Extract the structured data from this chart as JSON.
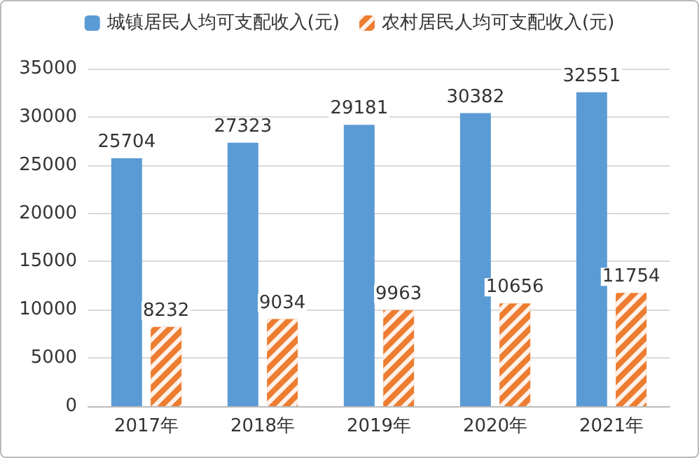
{
  "chart_data": {
    "type": "bar",
    "categories": [
      "2017年",
      "2018年",
      "2019年",
      "2020年",
      "2021年"
    ],
    "series": [
      {
        "name": "城镇居民人均可支配收入(元)",
        "color": "#5b9bd5",
        "values": [
          25704,
          27323,
          29181,
          30382,
          32551
        ]
      },
      {
        "name": "农村居民人均可支配收入(元)",
        "color": "#ed7d31",
        "values": [
          8232,
          9034,
          9963,
          10656,
          11754
        ]
      }
    ],
    "ylim": [
      0,
      35000
    ],
    "yticks": [
      0,
      5000,
      10000,
      15000,
      20000,
      25000,
      30000,
      35000
    ],
    "grid": "y",
    "legend": "top",
    "data_labels": true
  }
}
